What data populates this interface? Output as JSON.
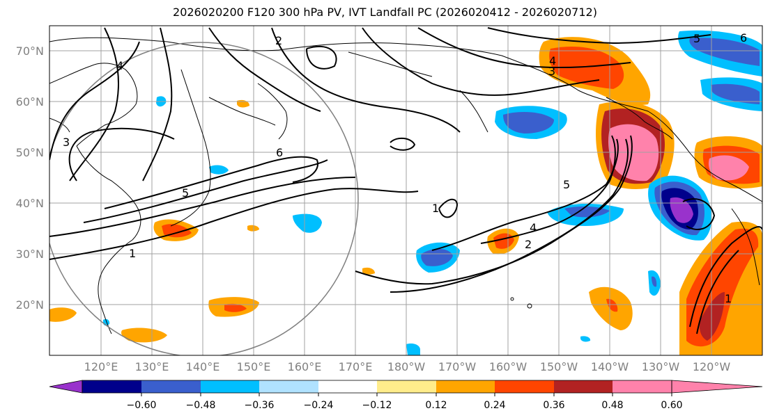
{
  "title": "2026020200 F120 300 hPa PV, IVT Landfall PC (2026020412 - 2026020712)",
  "map": {
    "lat_labels": [
      "70°N",
      "60°N",
      "50°N",
      "40°N",
      "30°N",
      "20°N"
    ],
    "lon_labels": [
      "120°E",
      "130°E",
      "140°E",
      "150°E",
      "160°E",
      "170°E",
      "180°W",
      "170°W",
      "160°W",
      "150°W",
      "140°W",
      "130°W",
      "120°W"
    ],
    "contour_labels": [
      "1",
      "2",
      "3",
      "4",
      "5",
      "6"
    ],
    "colors": {
      "contour": "#000000",
      "grid": "#a0a0a0",
      "coast": "#000000",
      "circle": "#808080"
    }
  },
  "colorbar": {
    "ticks": [
      "−0.60",
      "−0.48",
      "−0.36",
      "−0.24",
      "−0.12",
      "0.12",
      "0.24",
      "0.36",
      "0.48",
      "0.60"
    ],
    "colors": [
      "#9932cc",
      "#00008b",
      "#3a5fcd",
      "#00bfff",
      "#b0e2ff",
      "#ffffff",
      "#ffec8b",
      "#ffa500",
      "#ff4500",
      "#b22222",
      "#ff82ab"
    ]
  }
}
